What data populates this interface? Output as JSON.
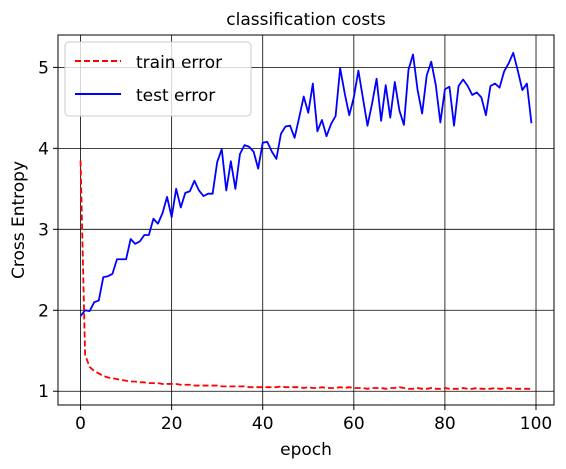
{
  "chart_data": {
    "type": "line",
    "title": "classification costs",
    "xlabel": "epoch",
    "ylabel": "Cross Entropy",
    "xlim": [
      -4.95,
      103.95
    ],
    "ylim": [
      0.83,
      5.4
    ],
    "xticks": [
      0,
      20,
      40,
      60,
      80,
      100
    ],
    "yticks": [
      1,
      2,
      3,
      4,
      5
    ],
    "grid": true,
    "legend": "top-left",
    "series": [
      {
        "name": "train error",
        "color": "#ff0000",
        "style": "dashed",
        "x": [
          0,
          1,
          2,
          3,
          4,
          5,
          6,
          7,
          8,
          9,
          10,
          11,
          12,
          13,
          14,
          15,
          16,
          17,
          18,
          19,
          20,
          21,
          22,
          23,
          24,
          25,
          26,
          27,
          28,
          29,
          30,
          31,
          32,
          33,
          34,
          35,
          36,
          37,
          38,
          39,
          40,
          41,
          42,
          43,
          44,
          45,
          46,
          47,
          48,
          49,
          50,
          51,
          52,
          53,
          54,
          55,
          56,
          57,
          58,
          59,
          60,
          61,
          62,
          63,
          64,
          65,
          66,
          67,
          68,
          69,
          70,
          71,
          72,
          73,
          74,
          75,
          76,
          77,
          78,
          79,
          80,
          81,
          82,
          83,
          84,
          85,
          86,
          87,
          88,
          89,
          90,
          91,
          92,
          93,
          94,
          95,
          96,
          97,
          98,
          99
        ],
        "values": [
          3.85,
          1.45,
          1.3,
          1.25,
          1.22,
          1.19,
          1.17,
          1.16,
          1.15,
          1.14,
          1.13,
          1.12,
          1.12,
          1.11,
          1.11,
          1.1,
          1.1,
          1.1,
          1.09,
          1.09,
          1.09,
          1.09,
          1.08,
          1.08,
          1.08,
          1.07,
          1.07,
          1.07,
          1.07,
          1.07,
          1.07,
          1.06,
          1.06,
          1.06,
          1.06,
          1.06,
          1.06,
          1.05,
          1.05,
          1.05,
          1.05,
          1.05,
          1.05,
          1.05,
          1.06,
          1.05,
          1.05,
          1.05,
          1.05,
          1.04,
          1.05,
          1.04,
          1.04,
          1.05,
          1.04,
          1.04,
          1.04,
          1.05,
          1.04,
          1.05,
          1.04,
          1.04,
          1.04,
          1.03,
          1.04,
          1.04,
          1.04,
          1.03,
          1.04,
          1.04,
          1.05,
          1.04,
          1.03,
          1.03,
          1.04,
          1.03,
          1.03,
          1.04,
          1.03,
          1.03,
          1.04,
          1.03,
          1.03,
          1.03,
          1.04,
          1.03,
          1.03,
          1.04,
          1.03,
          1.03,
          1.03,
          1.04,
          1.03,
          1.03,
          1.04,
          1.03,
          1.03,
          1.03,
          1.03,
          1.03
        ]
      },
      {
        "name": "test error",
        "color": "#0000ff",
        "style": "solid",
        "x": [
          0,
          1,
          2,
          3,
          4,
          5,
          6,
          7,
          8,
          9,
          10,
          11,
          12,
          13,
          14,
          15,
          16,
          17,
          18,
          19,
          20,
          21,
          22,
          23,
          24,
          25,
          26,
          27,
          28,
          29,
          30,
          31,
          32,
          33,
          34,
          35,
          36,
          37,
          38,
          39,
          40,
          41,
          42,
          43,
          44,
          45,
          46,
          47,
          48,
          49,
          50,
          51,
          52,
          53,
          54,
          55,
          56,
          57,
          58,
          59,
          60,
          61,
          62,
          63,
          64,
          65,
          66,
          67,
          68,
          69,
          70,
          71,
          72,
          73,
          74,
          75,
          76,
          77,
          78,
          79,
          80,
          81,
          82,
          83,
          84,
          85,
          86,
          87,
          88,
          89,
          90,
          91,
          92,
          93,
          94,
          95,
          96,
          97,
          98,
          99
        ],
        "values": [
          1.93,
          2.0,
          1.99,
          2.1,
          2.12,
          2.41,
          2.42,
          2.45,
          2.63,
          2.63,
          2.63,
          2.88,
          2.82,
          2.85,
          2.93,
          2.93,
          3.13,
          3.07,
          3.2,
          3.4,
          3.15,
          3.5,
          3.27,
          3.45,
          3.47,
          3.6,
          3.48,
          3.41,
          3.44,
          3.44,
          3.83,
          3.99,
          3.48,
          3.84,
          3.5,
          3.93,
          4.04,
          4.02,
          3.96,
          3.75,
          4.07,
          4.08,
          3.96,
          3.87,
          4.18,
          4.27,
          4.28,
          4.13,
          4.38,
          4.64,
          4.44,
          4.8,
          4.21,
          4.35,
          4.15,
          4.3,
          4.4,
          4.99,
          4.68,
          4.41,
          4.63,
          4.96,
          4.62,
          4.28,
          4.55,
          4.86,
          4.34,
          4.78,
          4.38,
          4.82,
          4.47,
          4.29,
          4.97,
          5.16,
          4.72,
          4.43,
          4.9,
          5.07,
          4.78,
          4.32,
          4.73,
          4.76,
          4.28,
          4.77,
          4.85,
          4.77,
          4.66,
          4.69,
          4.63,
          4.41,
          4.77,
          4.8,
          4.75,
          4.95,
          5.05,
          5.18,
          4.96,
          4.72,
          4.8,
          4.31
        ]
      }
    ]
  }
}
